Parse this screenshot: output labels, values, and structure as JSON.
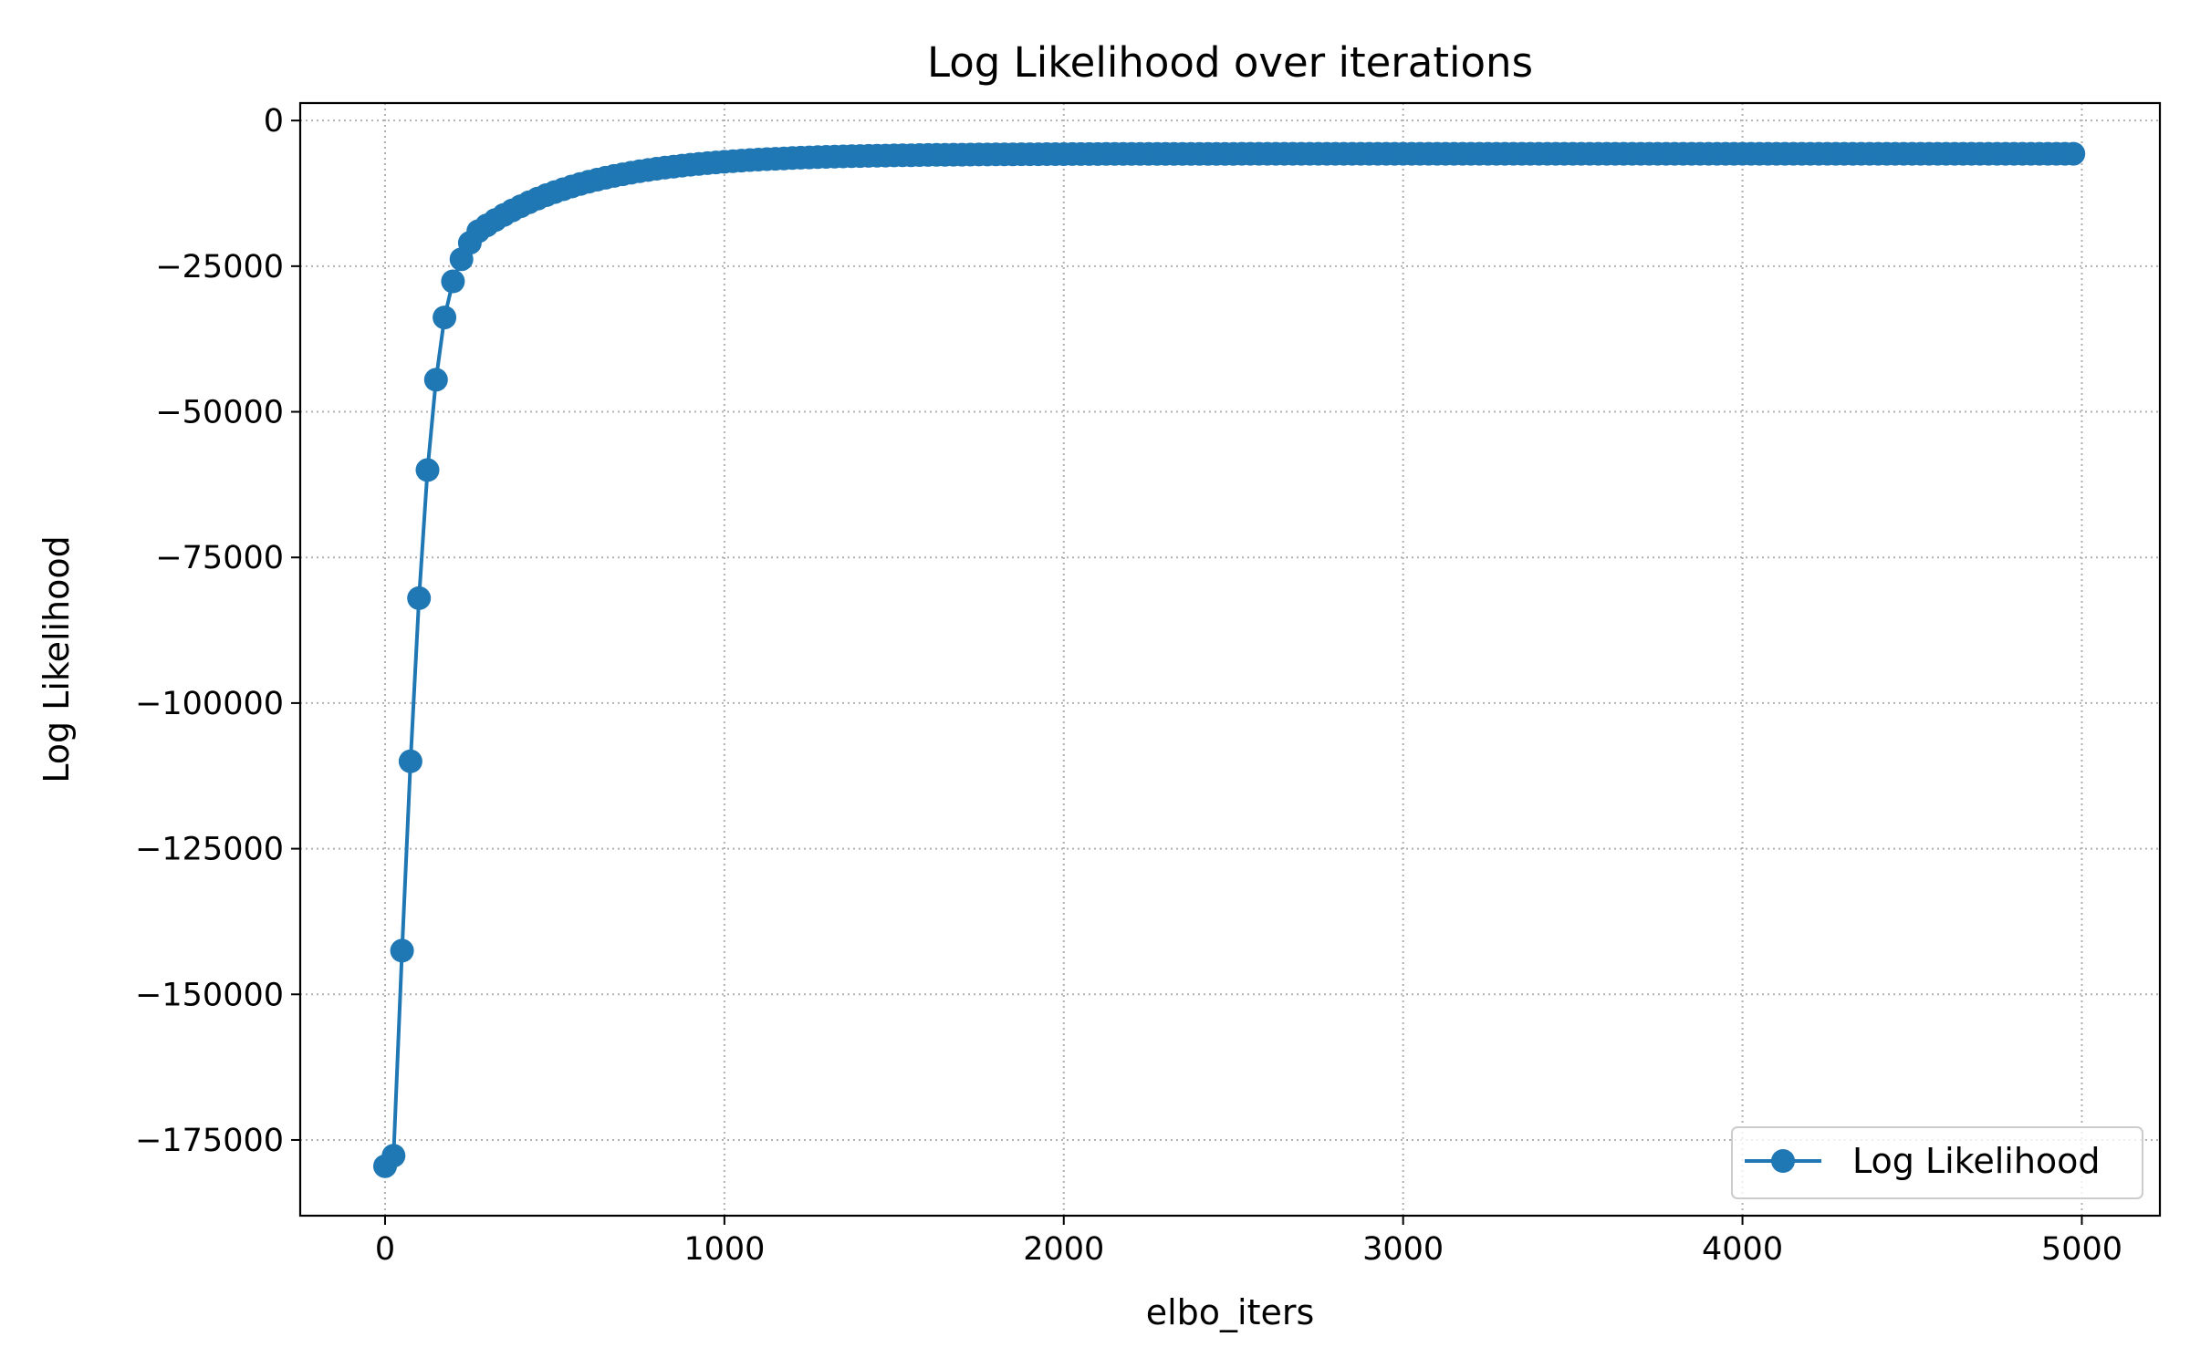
{
  "chart_data": {
    "type": "line",
    "title": "Log Likelihood over iterations",
    "xlabel": "elbo_iters",
    "ylabel": "Log Likelihood",
    "xlim": [
      -250,
      5230
    ],
    "ylim": [
      -188000,
      3000
    ],
    "xticks": [
      0,
      1000,
      2000,
      3000,
      4000,
      5000
    ],
    "xtick_labels": [
      "0",
      "1000",
      "2000",
      "3000",
      "4000",
      "5000"
    ],
    "yticks": [
      0,
      -25000,
      -50000,
      -75000,
      -100000,
      -125000,
      -150000,
      -175000
    ],
    "ytick_labels": [
      "0",
      "−25000",
      "−50000",
      "−75000",
      "−100000",
      "−125000",
      "−150000",
      "−175000"
    ],
    "grid": true,
    "legend_position": "lower-right",
    "series": [
      {
        "name": "Log Likelihood",
        "color": "#1f77b4",
        "marker": "circle",
        "x_start": 0,
        "x_step": 25,
        "n_points": 200,
        "first_values": [
          -179500,
          -177700,
          -142500,
          -110000,
          -82000,
          -60000,
          -44500,
          -33800,
          -27600,
          -23800,
          -21000,
          -19000
        ],
        "plateau_value": -5700,
        "plateau_decay_iters": 320
      }
    ]
  }
}
